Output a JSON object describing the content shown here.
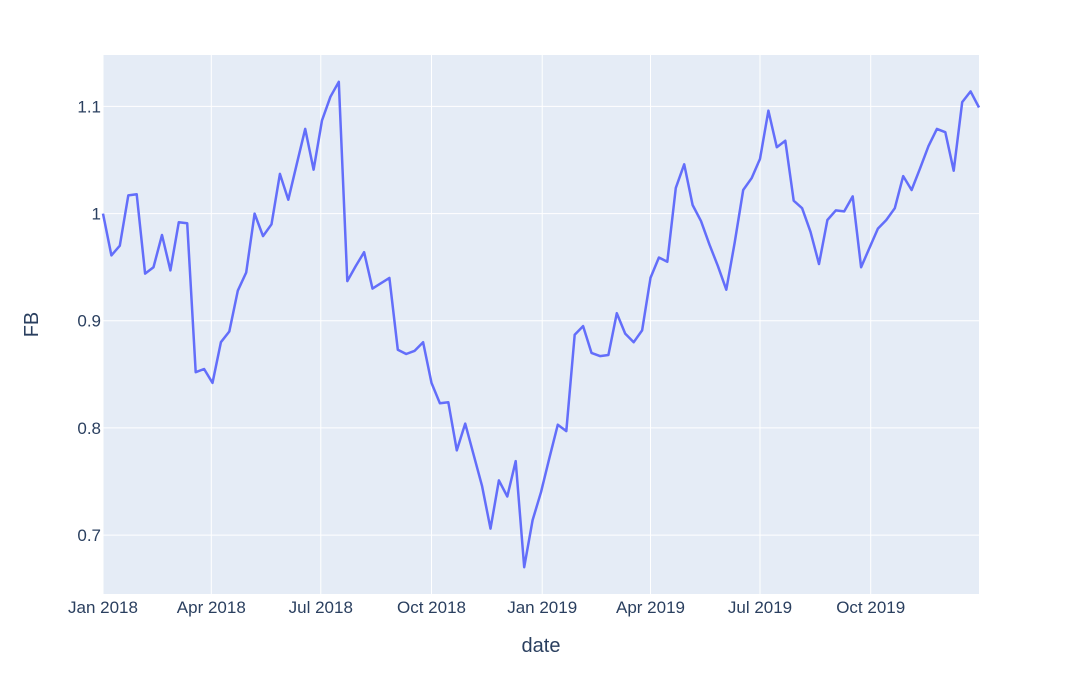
{
  "chart_data": {
    "type": "line",
    "title": "",
    "xlabel": "date",
    "ylabel": "FB",
    "xlim": [
      "2018-01-01",
      "2019-12-30"
    ],
    "ylim": [
      0.645,
      1.148
    ],
    "x_ticks": [
      {
        "date": "2018-01-01",
        "label": "Jan 2018"
      },
      {
        "date": "2018-04-01",
        "label": "Apr 2018"
      },
      {
        "date": "2018-07-01",
        "label": "Jul 2018"
      },
      {
        "date": "2018-10-01",
        "label": "Oct 2018"
      },
      {
        "date": "2019-01-01",
        "label": "Jan 2019"
      },
      {
        "date": "2019-04-01",
        "label": "Apr 2019"
      },
      {
        "date": "2019-07-01",
        "label": "Jul 2019"
      },
      {
        "date": "2019-10-01",
        "label": "Oct 2019"
      }
    ],
    "y_ticks": [
      {
        "value": 0.7,
        "label": "0.7"
      },
      {
        "value": 0.8,
        "label": "0.8"
      },
      {
        "value": 0.9,
        "label": "0.9"
      },
      {
        "value": 1.0,
        "label": "1"
      },
      {
        "value": 1.1,
        "label": "1.1"
      }
    ],
    "grid": true,
    "colors": {
      "line": "#636efa",
      "plot_bg": "#e5ecf6",
      "grid": "#ffffff",
      "text": "#2a3f5f"
    },
    "series": [
      {
        "x": [
          "2018-01-01",
          "2018-01-08",
          "2018-01-15",
          "2018-01-22",
          "2018-01-29",
          "2018-02-05",
          "2018-02-12",
          "2018-02-19",
          "2018-02-26",
          "2018-03-05",
          "2018-03-12",
          "2018-03-19",
          "2018-03-26",
          "2018-04-02",
          "2018-04-09",
          "2018-04-16",
          "2018-04-23",
          "2018-04-30",
          "2018-05-07",
          "2018-05-14",
          "2018-05-21",
          "2018-05-28",
          "2018-06-04",
          "2018-06-11",
          "2018-06-18",
          "2018-06-25",
          "2018-07-02",
          "2018-07-09",
          "2018-07-16",
          "2018-07-23",
          "2018-07-30",
          "2018-08-06",
          "2018-08-13",
          "2018-08-20",
          "2018-08-27",
          "2018-09-03",
          "2018-09-10",
          "2018-09-17",
          "2018-09-24",
          "2018-10-01",
          "2018-10-08",
          "2018-10-15",
          "2018-10-22",
          "2018-10-29",
          "2018-11-05",
          "2018-11-12",
          "2018-11-19",
          "2018-11-26",
          "2018-12-03",
          "2018-12-10",
          "2018-12-17",
          "2018-12-24",
          "2018-12-31",
          "2019-01-07",
          "2019-01-14",
          "2019-01-21",
          "2019-01-28",
          "2019-02-04",
          "2019-02-11",
          "2019-02-18",
          "2019-02-25",
          "2019-03-04",
          "2019-03-11",
          "2019-03-18",
          "2019-03-25",
          "2019-04-01",
          "2019-04-08",
          "2019-04-15",
          "2019-04-22",
          "2019-04-29",
          "2019-05-06",
          "2019-05-13",
          "2019-05-20",
          "2019-05-27",
          "2019-06-03",
          "2019-06-10",
          "2019-06-17",
          "2019-06-24",
          "2019-07-01",
          "2019-07-08",
          "2019-07-15",
          "2019-07-22",
          "2019-07-29",
          "2019-08-05",
          "2019-08-12",
          "2019-08-19",
          "2019-08-26",
          "2019-09-02",
          "2019-09-09",
          "2019-09-16",
          "2019-09-23",
          "2019-09-30",
          "2019-10-07",
          "2019-10-14",
          "2019-10-21",
          "2019-10-28",
          "2019-11-04",
          "2019-11-11",
          "2019-11-18",
          "2019-11-25",
          "2019-12-02",
          "2019-12-09",
          "2019-12-16",
          "2019-12-23",
          "2019-12-30"
        ],
        "y": [
          1.0,
          0.961,
          0.97,
          1.017,
          1.018,
          0.944,
          0.95,
          0.98,
          0.947,
          0.992,
          0.991,
          0.852,
          0.855,
          0.842,
          0.88,
          0.89,
          0.928,
          0.945,
          1.0,
          0.979,
          0.99,
          1.037,
          1.013,
          1.046,
          1.079,
          1.041,
          1.087,
          1.109,
          1.123,
          0.937,
          0.951,
          0.964,
          0.93,
          0.935,
          0.94,
          0.873,
          0.869,
          0.872,
          0.88,
          0.842,
          0.823,
          0.824,
          0.779,
          0.804,
          0.775,
          0.746,
          0.706,
          0.751,
          0.736,
          0.769,
          0.67,
          0.714,
          0.74,
          0.772,
          0.803,
          0.797,
          0.887,
          0.895,
          0.87,
          0.867,
          0.868,
          0.907,
          0.888,
          0.88,
          0.891,
          0.94,
          0.959,
          0.955,
          1.024,
          1.046,
          1.008,
          0.993,
          0.971,
          0.951,
          0.929,
          0.973,
          1.022,
          1.033,
          1.051,
          1.096,
          1.062,
          1.068,
          1.012,
          1.005,
          0.983,
          0.953,
          0.994,
          1.003,
          1.002,
          1.016,
          0.95,
          0.968,
          0.986,
          0.994,
          1.005,
          1.035,
          1.022,
          1.042,
          1.063,
          1.079,
          1.076,
          1.04,
          1.104,
          1.114,
          1.099
        ]
      }
    ]
  }
}
